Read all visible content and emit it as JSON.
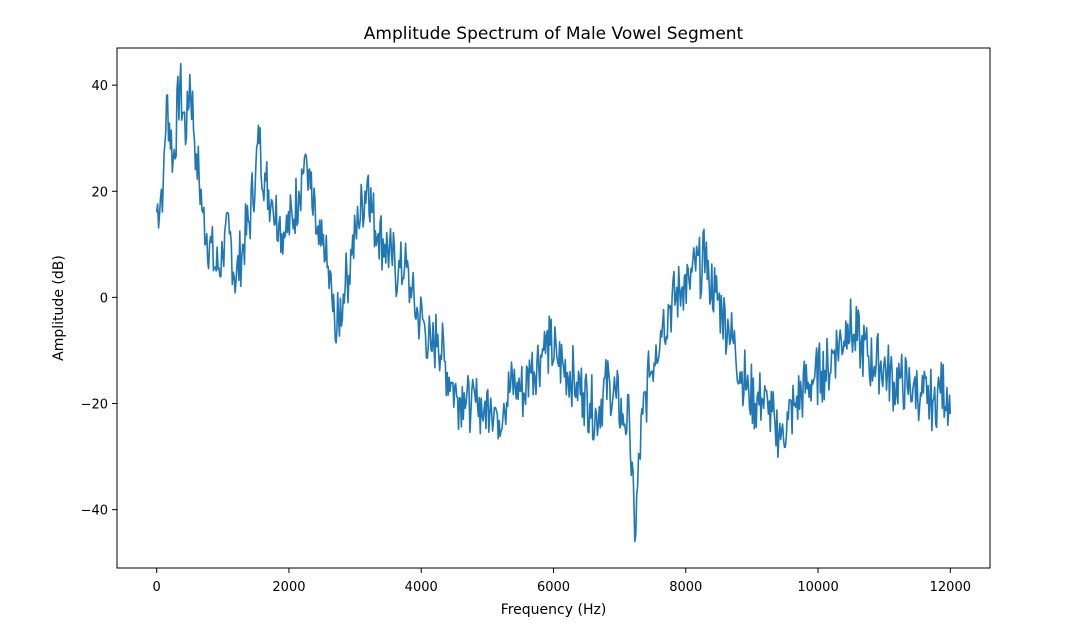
{
  "chart_data": {
    "type": "line",
    "title": "Amplitude Spectrum of Male Vowel Segment",
    "xlabel": "Frequency (Hz)",
    "ylabel": "Amplitude (dB)",
    "xlim": [
      -600,
      12600
    ],
    "ylim": [
      -51,
      47
    ],
    "xticks": [
      0,
      2000,
      4000,
      6000,
      8000,
      10000,
      12000
    ],
    "yticks": [
      -40,
      -20,
      0,
      20,
      40
    ],
    "xtick_labels": [
      "0",
      "2000",
      "4000",
      "6000",
      "8000",
      "10000",
      "12000"
    ],
    "ytick_labels": [
      "−40",
      "−20",
      "0",
      "20",
      "40"
    ],
    "grid": false,
    "line_color": "#1f77b4",
    "series": [
      {
        "x": [
          0,
          100,
          150,
          250,
          350,
          450,
          500,
          600,
          700,
          800,
          900,
          1000,
          1100,
          1200,
          1300,
          1400,
          1500,
          1550,
          1650,
          1750,
          1850,
          1950,
          2050,
          2150,
          2250,
          2300,
          2350,
          2450,
          2550,
          2650,
          2700,
          2750,
          2850,
          2950,
          3050,
          3150,
          3200,
          3250,
          3350,
          3450,
          3550,
          3650,
          3750,
          3850,
          3950,
          4050,
          4150,
          4250,
          4350,
          4450,
          4550,
          4650,
          4750,
          4850,
          4950,
          5050,
          5150,
          5250,
          5350,
          5450,
          5550,
          5650,
          5750,
          5850,
          5950,
          6050,
          6150,
          6250,
          6350,
          6450,
          6550,
          6650,
          6750,
          6850,
          6950,
          7050,
          7150,
          7230,
          7300,
          7350,
          7450,
          7550,
          7650,
          7750,
          7850,
          7950,
          8050,
          8150,
          8250,
          8300,
          8350,
          8450,
          8550,
          8650,
          8750,
          8850,
          8950,
          9050,
          9150,
          9250,
          9350,
          9450,
          9550,
          9650,
          9750,
          9850,
          9950,
          10050,
          10150,
          10250,
          10350,
          10450,
          10550,
          10650,
          10750,
          10850,
          10950,
          11050,
          11150,
          11250,
          11350,
          11450,
          11550,
          11650,
          11750,
          11850,
          11950,
          12000
        ],
        "y": [
          16,
          22,
          38,
          26,
          40,
          30,
          42,
          27,
          16,
          10,
          5,
          8,
          12,
          3,
          10,
          14,
          25,
          29,
          22,
          18,
          14,
          12,
          15,
          20,
          27,
          24,
          17,
          10,
          7,
          0,
          -8,
          -4,
          2,
          8,
          14,
          20,
          23,
          16,
          12,
          10,
          8,
          4,
          6,
          0,
          -3,
          -5,
          -10,
          -7,
          -12,
          -16,
          -19,
          -18,
          -22,
          -20,
          -21,
          -19,
          -22,
          -20,
          -17,
          -16,
          -18,
          -14,
          -12,
          -10,
          -9,
          -11,
          -13,
          -14,
          -16,
          -18,
          -20,
          -22,
          -18,
          -16,
          -19,
          -22,
          -24,
          -46,
          -30,
          -22,
          -15,
          -9,
          -5,
          -2,
          0,
          2,
          3,
          5,
          6,
          8,
          4,
          1,
          -3,
          -6,
          -10,
          -14,
          -17,
          -20,
          -19,
          -22,
          -24,
          -25,
          -23,
          -20,
          -18,
          -16,
          -15,
          -14,
          -13,
          -10,
          -8,
          -5,
          -7,
          -9,
          -11,
          -13,
          -12,
          -14,
          -16,
          -15,
          -17,
          -16,
          -18,
          -20,
          -19,
          -18,
          -17,
          -22
        ]
      }
    ]
  }
}
